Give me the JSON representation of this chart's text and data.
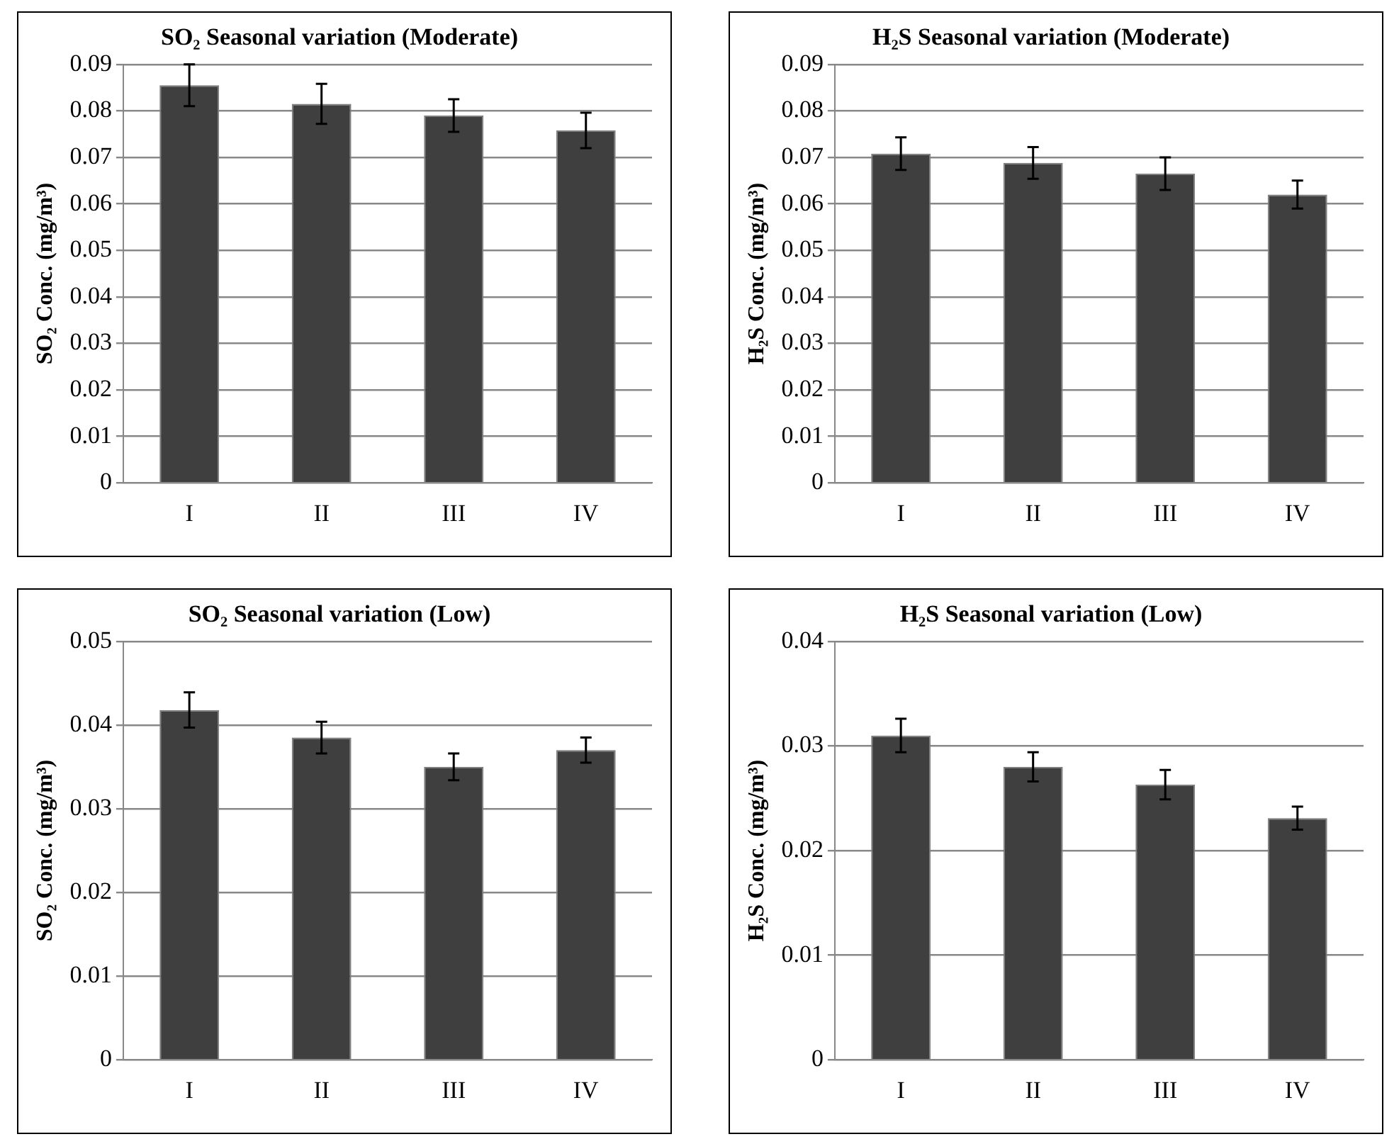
{
  "chart_data": [
    {
      "type": "bar",
      "title": "SO₂ Seasonal variation (Moderate)",
      "ylabel": "SO₂ Conc. (mg/m³)",
      "categories": [
        "I",
        "II",
        "III",
        "IV"
      ],
      "values": [
        0.0855,
        0.0815,
        0.079,
        0.0758
      ],
      "errors": [
        0.0045,
        0.0043,
        0.0035,
        0.0038
      ],
      "color": "#3f3f3f",
      "ylim": [
        0,
        0.09
      ],
      "yticks": [
        0,
        0.01,
        0.02,
        0.03,
        0.04,
        0.05,
        0.06,
        0.07,
        0.08,
        0.09
      ],
      "grid": "y",
      "legend": false
    },
    {
      "type": "bar",
      "title": "H₂S Seasonal variation (Moderate)",
      "ylabel": "H₂S Conc. (mg/m³)",
      "categories": [
        "I",
        "II",
        "III",
        "IV"
      ],
      "values": [
        0.0708,
        0.0688,
        0.0665,
        0.062
      ],
      "errors": [
        0.0035,
        0.0034,
        0.0035,
        0.003
      ],
      "color": "#3f3f3f",
      "ylim": [
        0,
        0.09
      ],
      "yticks": [
        0,
        0.01,
        0.02,
        0.03,
        0.04,
        0.05,
        0.06,
        0.07,
        0.08,
        0.09
      ],
      "grid": "y",
      "legend": false
    },
    {
      "type": "bar",
      "title": "SO₂ Seasonal variation (Low)",
      "ylabel": "SO₂ Conc. (mg/m³)",
      "categories": [
        "I",
        "II",
        "III",
        "IV"
      ],
      "values": [
        0.0418,
        0.0385,
        0.035,
        0.037
      ],
      "errors": [
        0.0021,
        0.0019,
        0.0016,
        0.0015
      ],
      "color": "#3f3f3f",
      "ylim": [
        0,
        0.05
      ],
      "yticks": [
        0,
        0.01,
        0.02,
        0.03,
        0.04,
        0.05
      ],
      "grid": "y",
      "legend": false
    },
    {
      "type": "bar",
      "title": "H₂S Seasonal variation (Low)",
      "ylabel": "H₂S Conc. (mg/m³)",
      "categories": [
        "I",
        "II",
        "III",
        "IV"
      ],
      "values": [
        0.031,
        0.028,
        0.0263,
        0.0231
      ],
      "errors": [
        0.0016,
        0.0014,
        0.0014,
        0.0011
      ],
      "color": "#3f3f3f",
      "ylim": [
        0,
        0.04
      ],
      "yticks": [
        0,
        0.01,
        0.02,
        0.03,
        0.04
      ],
      "grid": "y",
      "legend": false
    }
  ]
}
